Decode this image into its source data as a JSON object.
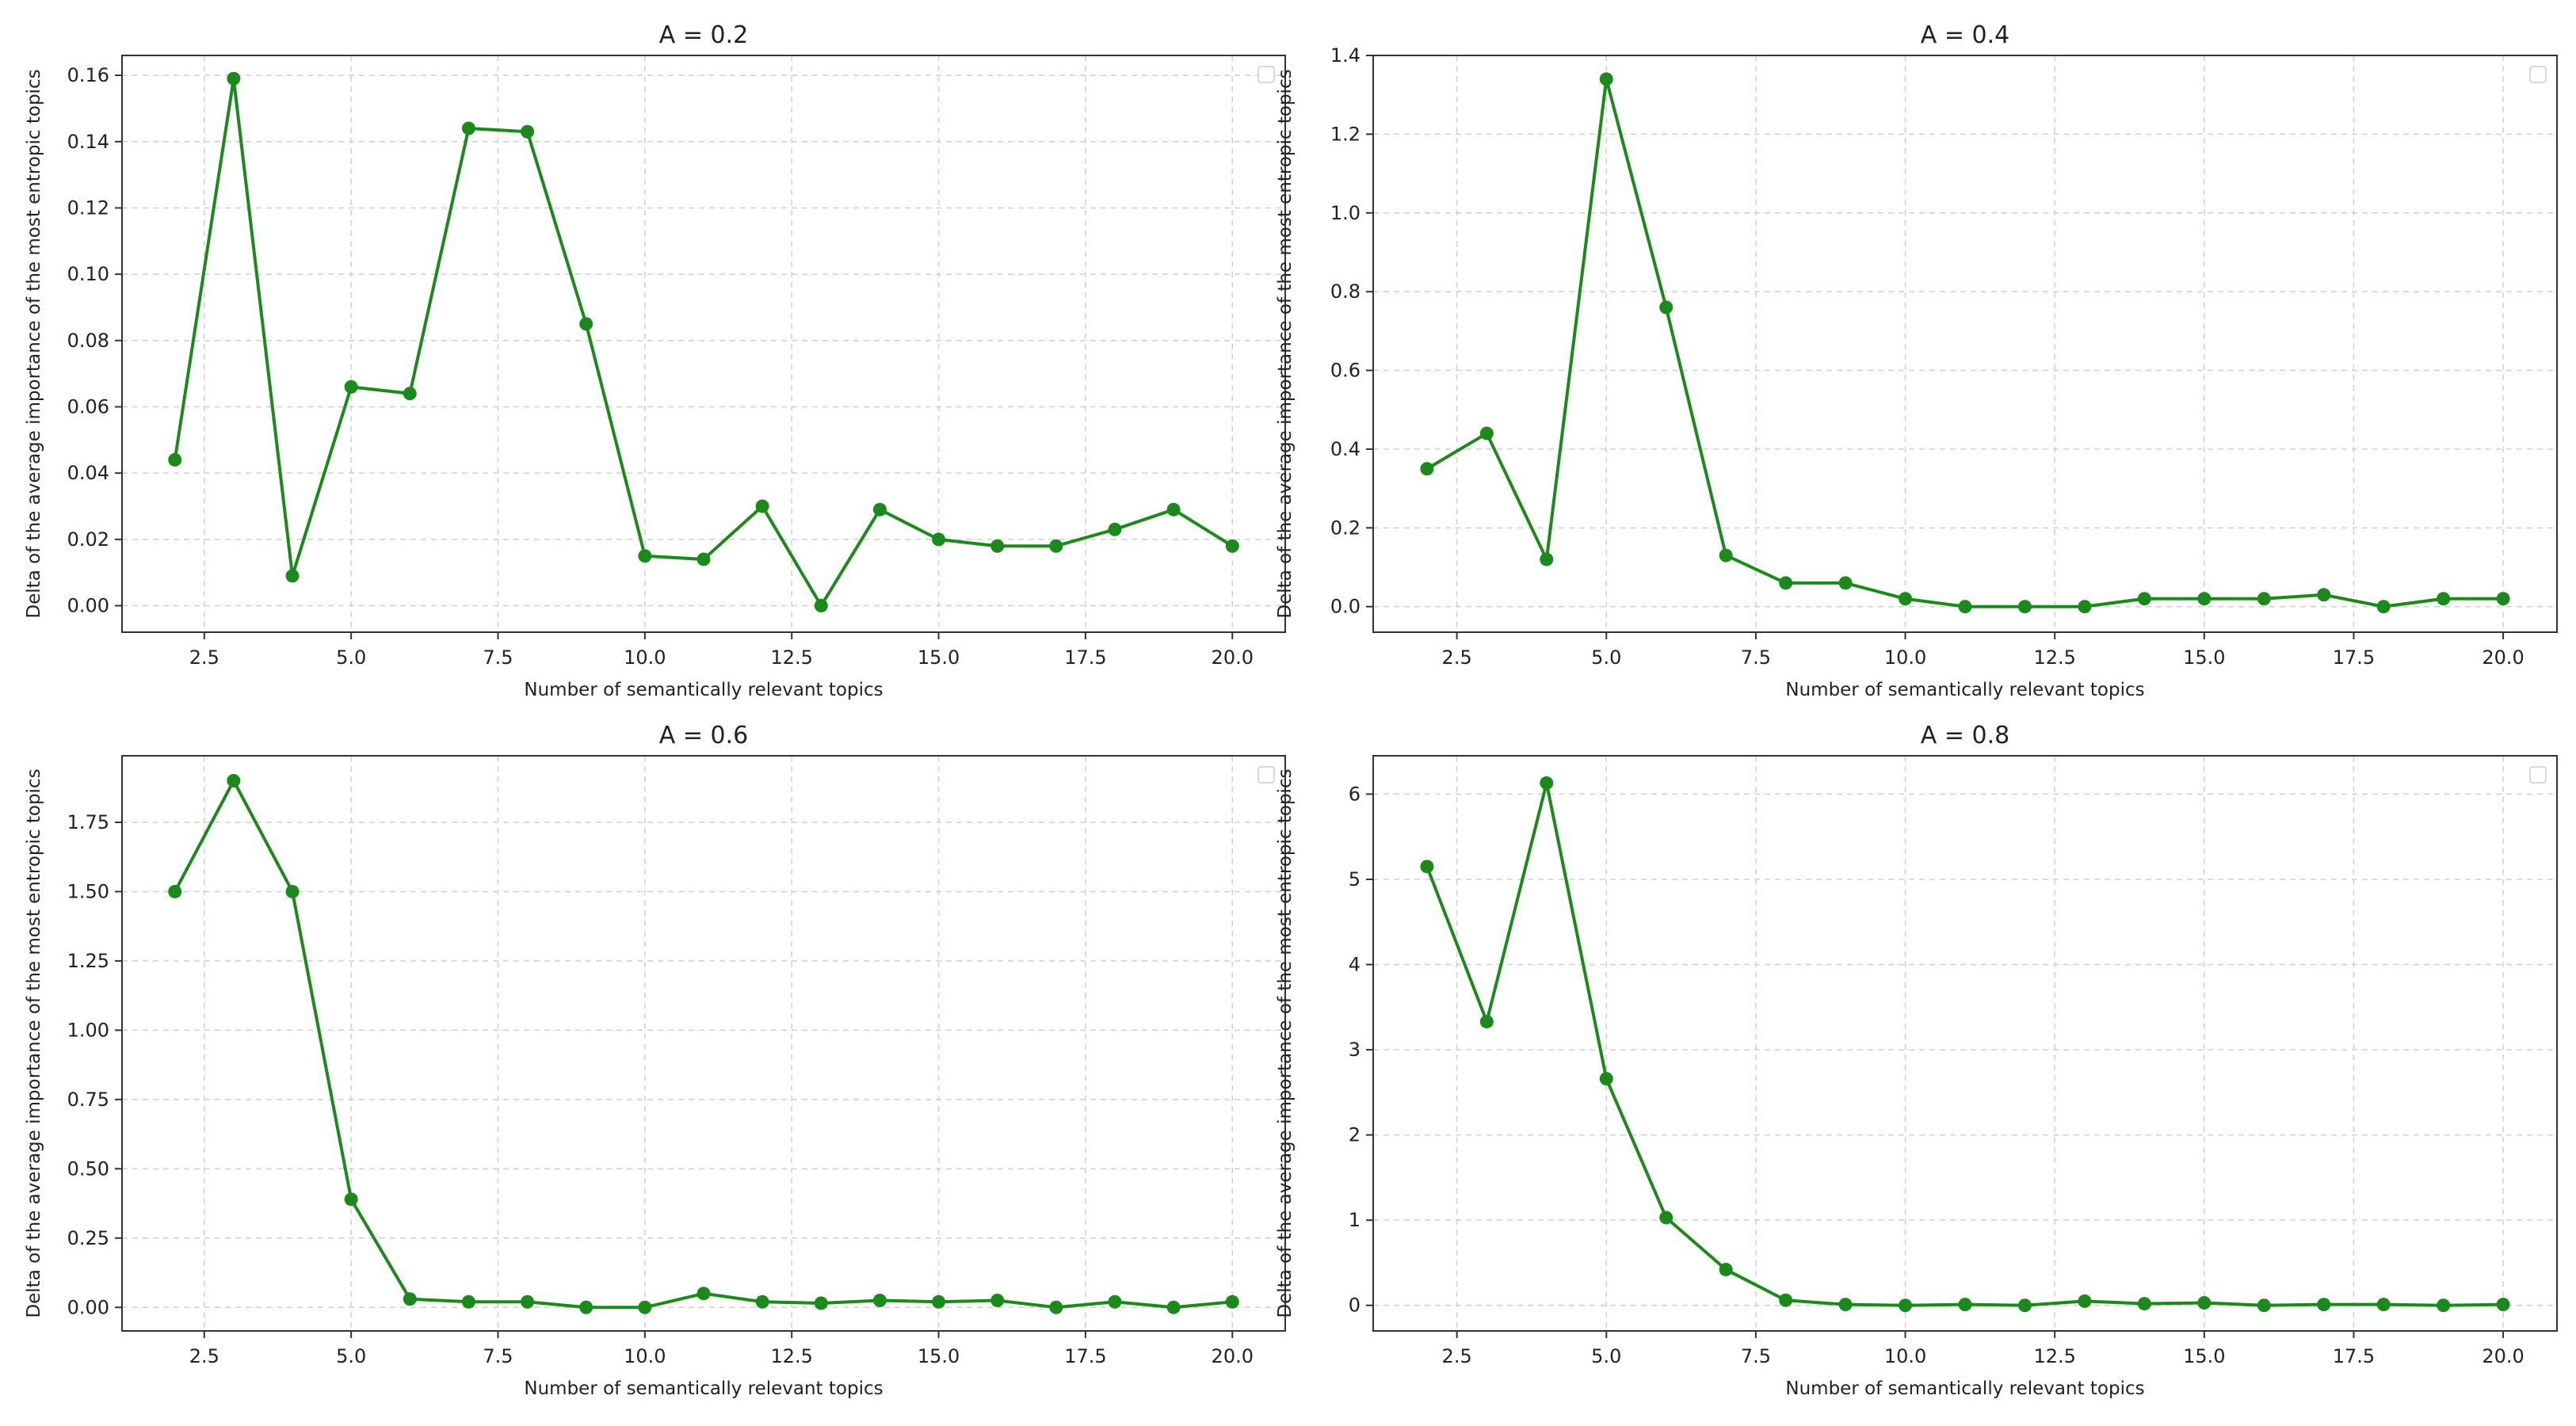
{
  "chart_data": [
    {
      "type": "line",
      "title": "A = 0.2",
      "xlabel": "Number of semantically relevant topics",
      "ylabel": "Delta of the average importance of the most entropic topics",
      "grid": true,
      "legend": "top-right",
      "color": "#1a8a1a",
      "xlim": [
        1.1,
        20.9
      ],
      "ylim": [
        -0.008,
        0.166
      ],
      "xticks": [
        2.5,
        5.0,
        7.5,
        10.0,
        12.5,
        15.0,
        17.5,
        20.0
      ],
      "xtick_labels": [
        "2.5",
        "5.0",
        "7.5",
        "10.0",
        "12.5",
        "15.0",
        "17.5",
        "20.0"
      ],
      "yticks": [
        0,
        0.02,
        0.04,
        0.06,
        0.08,
        0.1,
        0.12,
        0.14,
        0.16
      ],
      "ytick_labels": [
        "0.00",
        "0.02",
        "0.04",
        "0.06",
        "0.08",
        "0.10",
        "0.12",
        "0.14",
        "0.16"
      ],
      "x": [
        2,
        3,
        4,
        5,
        6,
        7,
        8,
        9,
        10,
        11,
        12,
        13,
        14,
        15,
        16,
        17,
        18,
        19,
        20
      ],
      "y": [
        0.044,
        0.159,
        0.009,
        0.066,
        0.064,
        0.144,
        0.143,
        0.085,
        0.015,
        0.014,
        0.03,
        0.0,
        0.029,
        0.02,
        0.018,
        0.018,
        0.023,
        0.029,
        0.018
      ]
    },
    {
      "type": "line",
      "title": "A = 0.4",
      "xlabel": "Number of semantically relevant topics",
      "ylabel": "Delta of the average importance of the most entropic topics",
      "grid": true,
      "legend": "top-right",
      "color": "#1a8a1a",
      "xlim": [
        1.1,
        20.9
      ],
      "ylim": [
        -0.065,
        1.4
      ],
      "xticks": [
        2.5,
        5.0,
        7.5,
        10.0,
        12.5,
        15.0,
        17.5,
        20.0
      ],
      "xtick_labels": [
        "2.5",
        "5.0",
        "7.5",
        "10.0",
        "12.5",
        "15.0",
        "17.5",
        "20.0"
      ],
      "yticks": [
        0,
        0.2,
        0.4,
        0.6,
        0.8,
        1.0,
        1.2,
        1.4
      ],
      "ytick_labels": [
        "0.0",
        "0.2",
        "0.4",
        "0.6",
        "0.8",
        "1.0",
        "1.2",
        "1.4"
      ],
      "x": [
        2,
        3,
        4,
        5,
        6,
        7,
        8,
        9,
        10,
        11,
        12,
        13,
        14,
        15,
        16,
        17,
        18,
        19,
        20
      ],
      "y": [
        0.35,
        0.44,
        0.12,
        1.34,
        0.76,
        0.13,
        0.06,
        0.06,
        0.02,
        0.0,
        0.0,
        0.0,
        0.02,
        0.02,
        0.02,
        0.03,
        0.0,
        0.02,
        0.02
      ]
    },
    {
      "type": "line",
      "title": "A = 0.6",
      "xlabel": "Number of semantically relevant topics",
      "ylabel": "Delta of the average importance of the most entropic topics",
      "grid": true,
      "legend": "top-right",
      "color": "#1a8a1a",
      "xlim": [
        1.1,
        20.9
      ],
      "ylim": [
        -0.085,
        1.99
      ],
      "xticks": [
        2.5,
        5.0,
        7.5,
        10.0,
        12.5,
        15.0,
        17.5,
        20.0
      ],
      "xtick_labels": [
        "2.5",
        "5.0",
        "7.5",
        "10.0",
        "12.5",
        "15.0",
        "17.5",
        "20.0"
      ],
      "yticks": [
        0,
        0.25,
        0.5,
        0.75,
        1.0,
        1.25,
        1.5,
        1.75
      ],
      "ytick_labels": [
        "0.00",
        "0.25",
        "0.50",
        "0.75",
        "1.00",
        "1.25",
        "1.50",
        "1.75"
      ],
      "x": [
        2,
        3,
        4,
        5,
        6,
        7,
        8,
        9,
        10,
        11,
        12,
        13,
        14,
        15,
        16,
        17,
        18,
        19,
        20
      ],
      "y": [
        1.5,
        1.9,
        1.5,
        0.39,
        0.03,
        0.02,
        0.02,
        0.0,
        0.0,
        0.05,
        0.02,
        0.015,
        0.025,
        0.02,
        0.025,
        0.0,
        0.02,
        0.0,
        0.02
      ]
    },
    {
      "type": "line",
      "title": "A = 0.8",
      "xlabel": "Number of semantically relevant topics",
      "ylabel": "Delta of the average importance of the most entropic topics",
      "grid": true,
      "legend": "top-right",
      "color": "#1a8a1a",
      "xlim": [
        1.1,
        20.9
      ],
      "ylim": [
        -0.3,
        6.45
      ],
      "xticks": [
        2.5,
        5.0,
        7.5,
        10.0,
        12.5,
        15.0,
        17.5,
        20.0
      ],
      "xtick_labels": [
        "2.5",
        "5.0",
        "7.5",
        "10.0",
        "12.5",
        "15.0",
        "17.5",
        "20.0"
      ],
      "yticks": [
        0,
        1,
        2,
        3,
        4,
        5,
        6
      ],
      "ytick_labels": [
        "0",
        "1",
        "2",
        "3",
        "4",
        "5",
        "6"
      ],
      "x": [
        2,
        3,
        4,
        5,
        6,
        7,
        8,
        9,
        10,
        11,
        12,
        13,
        14,
        15,
        16,
        17,
        18,
        19,
        20
      ],
      "y": [
        5.15,
        3.33,
        6.13,
        2.66,
        1.03,
        0.42,
        0.06,
        0.01,
        0.0,
        0.01,
        0.0,
        0.05,
        0.02,
        0.03,
        0.0,
        0.01,
        0.01,
        0.0,
        0.01
      ]
    }
  ]
}
